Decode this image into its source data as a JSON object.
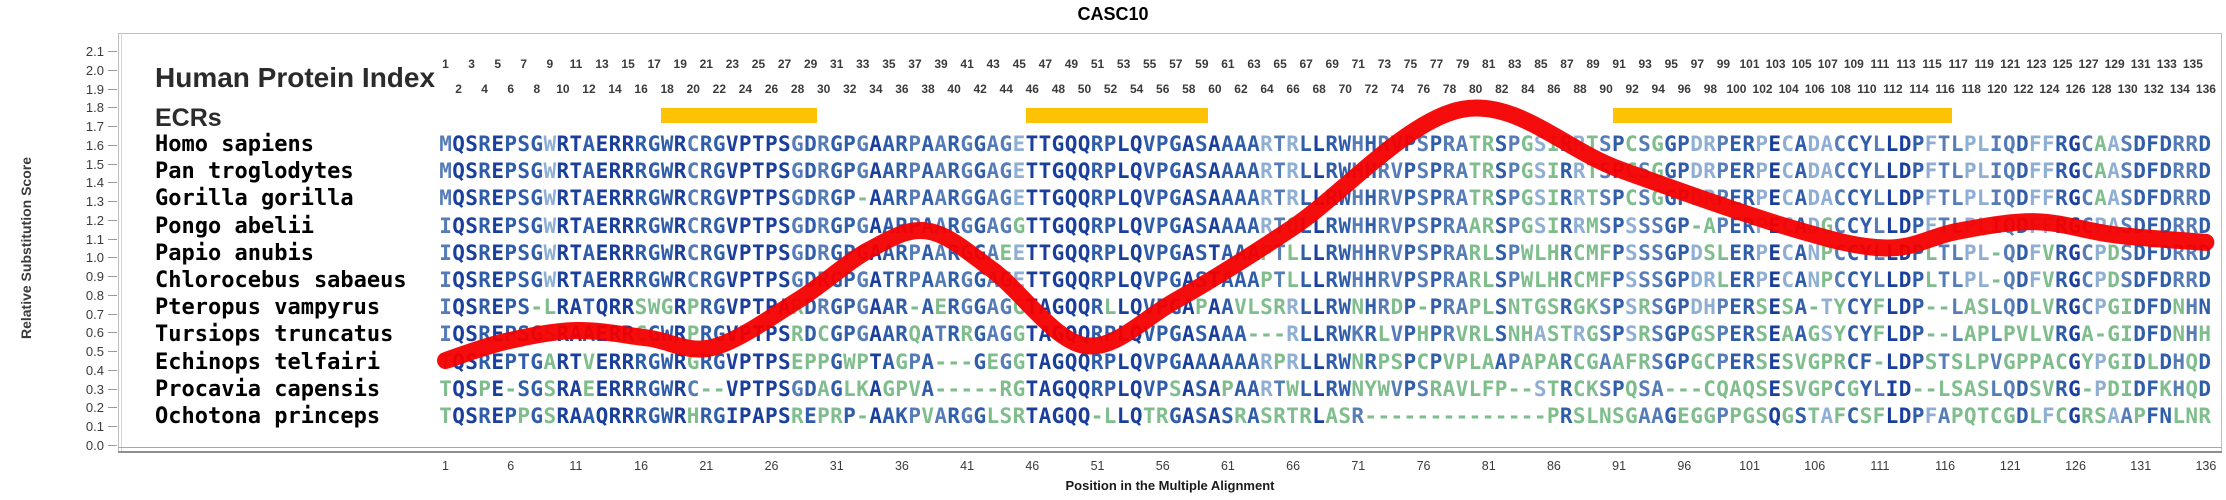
{
  "title": "CASC10",
  "header": {
    "human_protein_index": "Human Protein Index",
    "ecrs": "ECRs",
    "odd_numbers": [
      1,
      3,
      5,
      7,
      9,
      11,
      13,
      15,
      17,
      19,
      21,
      23,
      25,
      27,
      29,
      31,
      33,
      35,
      37,
      39,
      41,
      43,
      45,
      47,
      49,
      51,
      53,
      55,
      57,
      59,
      61,
      63,
      65,
      67,
      69,
      71,
      73,
      75,
      77,
      79,
      81,
      83,
      85,
      87,
      89,
      91,
      93,
      95,
      97,
      99,
      101,
      103,
      105,
      107,
      109,
      111,
      113,
      115,
      117,
      119,
      121,
      123,
      125,
      127,
      129,
      131,
      133,
      135
    ],
    "even_numbers": [
      2,
      4,
      6,
      8,
      10,
      12,
      14,
      16,
      18,
      20,
      22,
      24,
      26,
      28,
      30,
      32,
      34,
      36,
      38,
      40,
      42,
      44,
      46,
      48,
      50,
      52,
      54,
      56,
      58,
      60,
      62,
      64,
      66,
      68,
      70,
      72,
      74,
      76,
      78,
      80,
      82,
      84,
      86,
      88,
      90,
      92,
      94,
      96,
      98,
      100,
      102,
      104,
      106,
      108,
      110,
      112,
      114,
      116,
      118,
      120,
      122,
      124,
      126,
      128,
      130,
      132,
      134,
      136
    ]
  },
  "y_axis": {
    "label": "Relative Substitution Score",
    "ticks": [
      "2.1",
      "2.0",
      "1.9",
      "1.8",
      "1.7",
      "1.6",
      "1.5",
      "1.4",
      "1.3",
      "1.2",
      "1.1",
      "1.0",
      "0.9",
      "0.8",
      "0.7",
      "0.6",
      "0.5",
      "0.4",
      "0.3",
      "0.2",
      "0.1",
      "0.0"
    ]
  },
  "x_axis": {
    "label": "Position in the Multiple Alignment",
    "ticks": [
      1,
      6,
      11,
      16,
      21,
      26,
      31,
      36,
      41,
      46,
      51,
      56,
      61,
      66,
      71,
      76,
      81,
      86,
      91,
      96,
      101,
      106,
      111,
      116,
      121,
      126,
      131,
      136
    ]
  },
  "ecr_bars": [
    {
      "start": 18,
      "end": 30
    },
    {
      "start": 46,
      "end": 60
    },
    {
      "start": 91,
      "end": 117
    }
  ],
  "species": [
    {
      "name": "Homo sapiens",
      "sequence": "MQSREPSGWRTAERRRGWRCRGVPTPSGDRGPGAARPAARGGAGETTGQQRPLQVPGASAAAARTRLLRWHHRVPSPRATRSPGSIRRTSPCSGGPDRPERPECADACCYLLDPFTLPLIQDFFRGCAASDFDRRD"
    },
    {
      "name": "Pan troglodytes",
      "sequence": "MQSREPSGWRTAERRRGWRCRGVPTPSGDRGPGAARPAARGGAGETTGQQRPLQVPGASAAAARTRLLRWHHRVPSPRATRSPGSIRRTSPCSGGPDRPERPECADACCYLLDPFTLPLIQDFFRGCAASDFDRRD"
    },
    {
      "name": "Gorilla gorilla",
      "sequence": "MQSREPSGWRTAERRRGWRCRGVPTPSGDRGP-AARPAARGGAGETTGQQRPLQVPGASAAAARTRLLRWHHRVPSPRATRSPGSIRRTSPCSGGPDRPERPECADACCYLLDPFTLPLIQDFFRGCAASDFDRRD"
    },
    {
      "name": "Pongo abelii",
      "sequence": "IQSREPSGWRTAERRRGWRCRGVPTPSGDRGPGAARPAARGGAGGTTGQQRPLQVPGASAAAARTQLLRWHHRVPSPRAARSPGSIRRMSPSSSGP-APERPECADGCCYLLDPFTLPLIQDFFRGCPASDFDRRD"
    },
    {
      "name": "Papio anubis",
      "sequence": "IQSREPSGWRTAERRRGWRCRGVPTPSGDRGPGAARPAARGGAEETTGQQRPLQVPGASTAAAPTLLLRWHHRVPSPRARLSPWLHRCMFPSSSGPDSLERPECANPCCYLLDPLTLPL-QDFVRGCPDSDFDRRD"
    },
    {
      "name": "Chlorocebus sabaeus",
      "sequence": "IQSREPSGWRTAERRRGWRCRGVPTPSGDRGPGATRPAARGGAGETTGQQRPLQVPGASTAAAPTLLLRWHHRVPSPRARLSPWLHRCMFPSSSGPDRLERPECANPCCYLLDPLTLPL-QDFVRGCPDSDFDRRD"
    },
    {
      "name": "Pteropus vampyrus",
      "sequence": "IQSREPS-LRATQRRSWGRPRGVPTPARDRGPGAAR-AERGGAGGTAGQQRLLQVPGAPAAVLSRRLLRWNHRDP-PRAPLSNTGSRGKSPSRSGPDHPERSESA-TYCYFLDP--LASLQDLVRGCPGIDFDNHN"
    },
    {
      "name": "Tursiops truncatus",
      "sequence": "IQSREPSGSRAAERRCGWRPRGVPTPSRDCGPGAARQATRRGAGGTAGQQRPLQVPGASAAA---RLLRWKRLVPHPRVRLSNHASTRGSPSRSGPGSPERSEAAGSYCYFLDP--LAPLPVLVRGA-GIDFDNHH"
    },
    {
      "name": "Echinops telfairi",
      "sequence": "TQSREPTGARTVERRRGWRGRGVPTPSEPPGWPTAGPA---GEGGTAGQQRPLQVPGAAAAAARPRLLRWNRPSPCPVPLAAPAPARCGAAFRSGPGCPERSESVGPRCF-LDPSTSLPVGPPACGYPGIDLDHQD"
    },
    {
      "name": "Procavia capensis",
      "sequence": "TQSPE-SGSRAEERRRGWRC--VPTPSGDAGLKAGPVA-----RGTAGQQRPLQVPSASAPAARTWLLRWNYWVPSRAVLFP--STRCKSPQSA---CQAQSESVGPCGYLID--LSASLQDSVRG-PDIDFKHQD"
    },
    {
      "name": "Ochotona princeps",
      "sequence": "TQSREPPGSRAAQRRRGWRHRGIPAPSREPRP-AAKPVARGGLSRTAGQQ-LLQTRGASASRASRTRLASR--------------PRSLNSGAAGEGGPPGSQGSTAFCSFLDPFAPQTCGDLFCGRSAAPFNLNR"
    }
  ],
  "colors": {
    "ecr_bar": "#FCC203",
    "curve": "#F40000",
    "conservation_palette": [
      "#1A3E9C",
      "#2F5DA9",
      "#567CB7",
      "#8FAED4",
      "#7FBD8C"
    ],
    "axis_text": "#3A3A3A"
  },
  "chart_data": {
    "type": "line",
    "title": "CASC10",
    "xlabel": "Position in the Multiple Alignment",
    "ylabel": "Relative Substitution Score",
    "xlim": [
      1,
      136
    ],
    "ylim": [
      0.0,
      2.1
    ],
    "grid": false,
    "legend": "none",
    "series": [
      {
        "name": "relative-substitution-score",
        "style": "thick red smoothed line over alignment",
        "points": [
          {
            "pos": 1,
            "score": 0.45
          },
          {
            "pos": 5.5,
            "score": 0.55
          },
          {
            "pos": 11,
            "score": 0.61
          },
          {
            "pos": 16.5,
            "score": 0.57
          },
          {
            "pos": 21.5,
            "score": 0.52
          },
          {
            "pos": 28,
            "score": 0.77
          },
          {
            "pos": 33.5,
            "score": 1.04
          },
          {
            "pos": 38,
            "score": 1.14
          },
          {
            "pos": 43,
            "score": 0.93
          },
          {
            "pos": 50,
            "score": 0.53
          },
          {
            "pos": 57,
            "score": 0.77
          },
          {
            "pos": 66,
            "score": 1.16
          },
          {
            "pos": 79,
            "score": 1.79
          },
          {
            "pos": 91,
            "score": 1.47
          },
          {
            "pos": 104,
            "score": 1.16
          },
          {
            "pos": 111.5,
            "score": 1.05
          },
          {
            "pos": 117,
            "score": 1.14
          },
          {
            "pos": 123,
            "score": 1.19
          },
          {
            "pos": 129,
            "score": 1.12
          },
          {
            "pos": 136,
            "score": 1.08
          }
        ]
      }
    ],
    "ecr_regions": [
      [
        18,
        30
      ],
      [
        46,
        60
      ],
      [
        91,
        117
      ]
    ]
  }
}
